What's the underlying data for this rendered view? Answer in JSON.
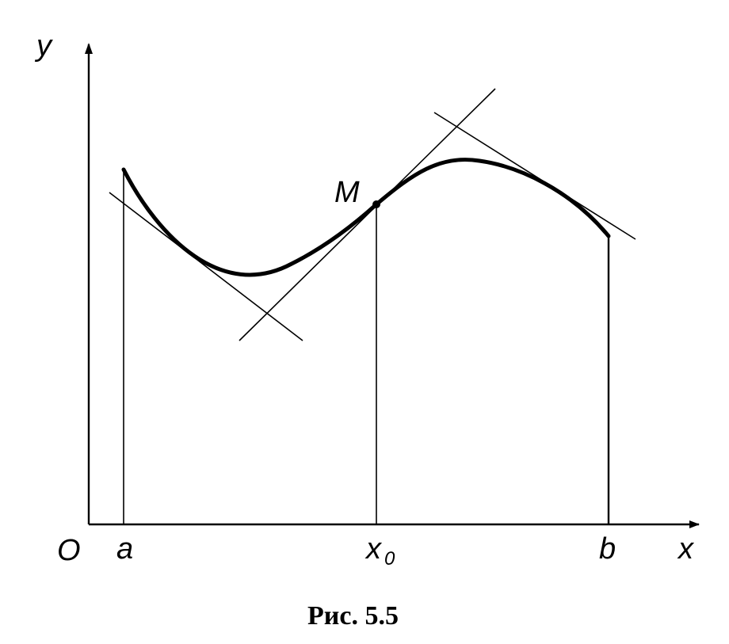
{
  "labels": {
    "y_axis": "y",
    "x_axis": "x",
    "origin": "O",
    "a": "a",
    "x0_main": "x",
    "x0_sub": "0",
    "b": "b",
    "point": "M"
  },
  "caption": "Рис. 5.5"
}
